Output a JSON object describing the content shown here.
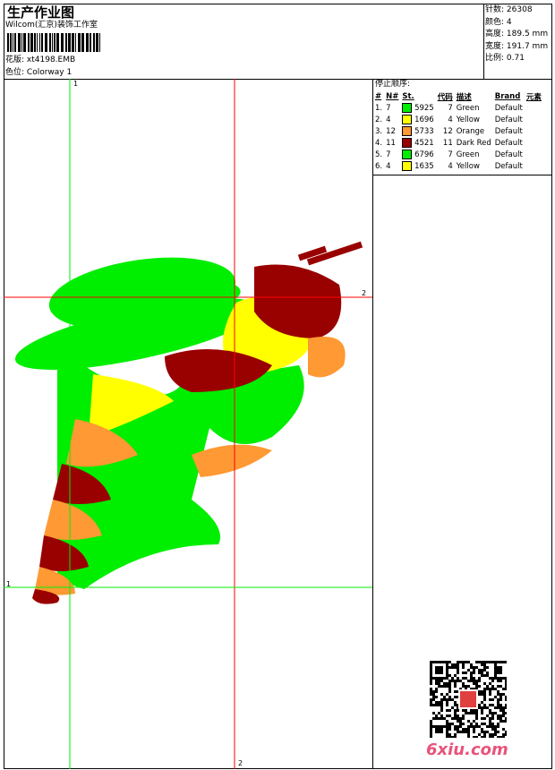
{
  "header": {
    "title": "生产作业图",
    "company": "Wilcom(汇京)装饰工作室",
    "design_label": "花版:",
    "design_value": "xt4198.EMB",
    "colorway_label": "色位:",
    "colorway_value": "Colorway 1"
  },
  "info": [
    {
      "label": "针数:",
      "value": "26308"
    },
    {
      "label": "颜色:",
      "value": "4"
    },
    {
      "label": "高度:",
      "value": "189.5 mm"
    },
    {
      "label": "宽度:",
      "value": "191.7 mm"
    },
    {
      "label": "比例:",
      "value": "0.71"
    }
  ],
  "stop_sequence": {
    "title": "停止顺序:",
    "columns": [
      "#",
      "N#",
      "St.",
      "代码",
      "描述",
      "Brand",
      "元素"
    ],
    "rows": [
      {
        "idx": "1.",
        "n": "7",
        "color": "#00ee00",
        "st": "5925",
        "code": "7",
        "desc": "Green",
        "brand": "Default"
      },
      {
        "idx": "2.",
        "n": "4",
        "color": "#ffff00",
        "st": "1696",
        "code": "4",
        "desc": "Yellow",
        "brand": "Default"
      },
      {
        "idx": "3.",
        "n": "12",
        "color": "#ff9933",
        "st": "5733",
        "code": "12",
        "desc": "Orange",
        "brand": "Default"
      },
      {
        "idx": "4.",
        "n": "11",
        "color": "#990000",
        "st": "4521",
        "code": "11",
        "desc": "Dark Red",
        "brand": "Default"
      },
      {
        "idx": "5.",
        "n": "7",
        "color": "#00ee00",
        "st": "6796",
        "code": "7",
        "desc": "Green",
        "brand": "Default"
      },
      {
        "idx": "6.",
        "n": "4",
        "color": "#ffff00",
        "st": "1635",
        "code": "4",
        "desc": "Yellow",
        "brand": "Default"
      }
    ]
  },
  "guides": {
    "v1": "1",
    "h2": "2",
    "h1": "1",
    "v2": "2"
  },
  "watermark": "6xiu.com"
}
